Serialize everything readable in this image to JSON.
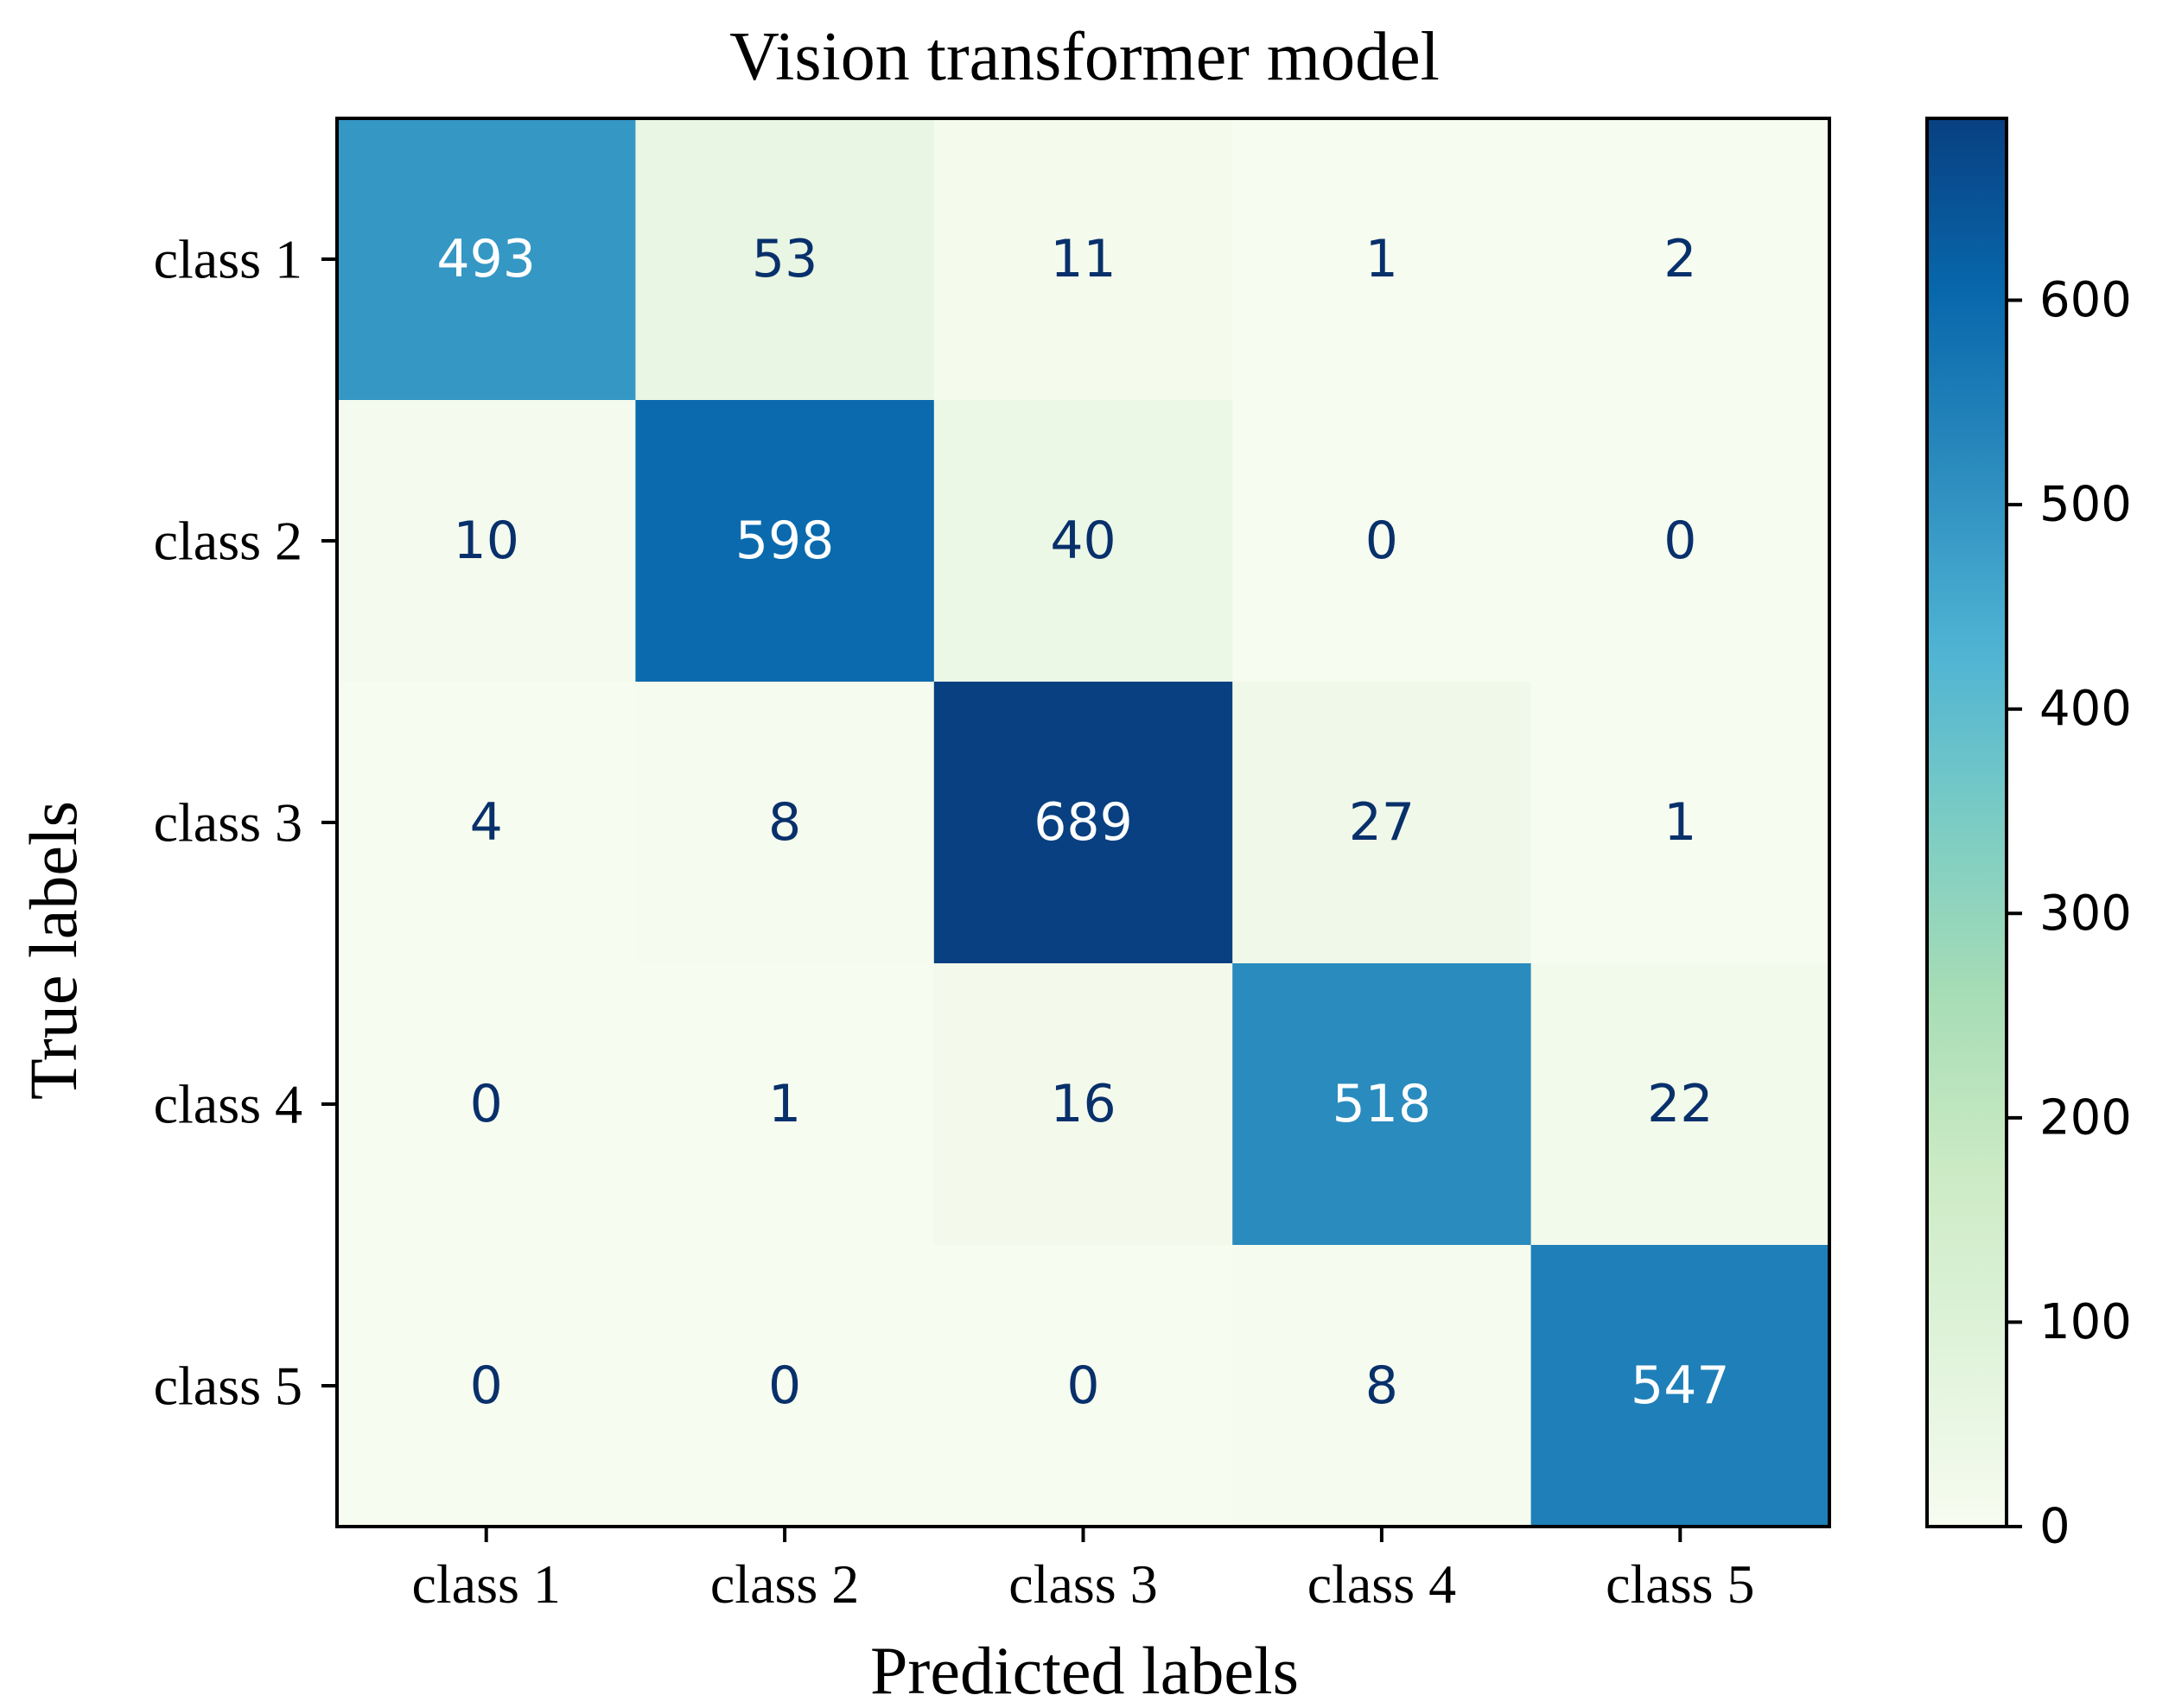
{
  "chart_data": {
    "type": "heatmap",
    "title": "Vision transformer model",
    "xlabel": "Predicted labels",
    "ylabel": "True labels",
    "x_categories": [
      "class 1",
      "class 2",
      "class 3",
      "class 4",
      "class 5"
    ],
    "y_categories": [
      "class 1",
      "class 2",
      "class 3",
      "class 4",
      "class 5"
    ],
    "matrix": [
      [
        493,
        53,
        11,
        1,
        2
      ],
      [
        10,
        598,
        40,
        0,
        0
      ],
      [
        4,
        8,
        689,
        27,
        1
      ],
      [
        0,
        1,
        16,
        518,
        22
      ],
      [
        0,
        0,
        0,
        8,
        547
      ]
    ],
    "colorbar": {
      "min": 0,
      "max": 689,
      "ticks": [
        0,
        100,
        200,
        300,
        400,
        500,
        600
      ],
      "colormap": "GnBu",
      "stops": [
        "#f7fcf0",
        "#e0f3db",
        "#ccebc5",
        "#a8ddb5",
        "#7bccc4",
        "#4eb3d3",
        "#2b8cbe",
        "#0868ac",
        "#084081"
      ]
    },
    "grid": false
  }
}
